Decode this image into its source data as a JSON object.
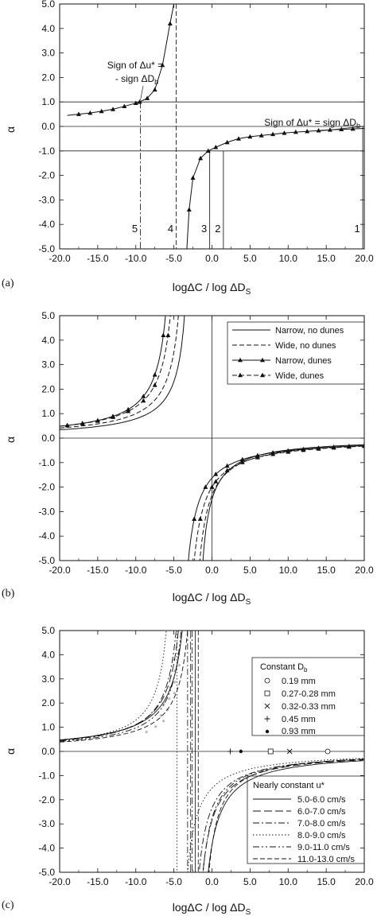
{
  "figure": {
    "panels": [
      {
        "letter": "(a)",
        "xlabel": "logΔC / log ΔD",
        "xlabel_sub": "S",
        "ylabel": "α",
        "annotations": [
          {
            "lines": [
              "Sign of Δu* =",
              "- sign ΔD"
            ],
            "sub": "b"
          },
          {
            "lines": [
              "Sign of Δu* = sign ΔD"
            ],
            "sub": "b"
          }
        ],
        "region_labels": [
          "1",
          "2",
          "3",
          "4",
          "5"
        ]
      },
      {
        "letter": "(b)",
        "xlabel": "logΔC / log ΔD",
        "xlabel_sub": "S",
        "ylabel": "α",
        "legend": [
          "Narrow, no dunes",
          "Wide, no dunes",
          "Narrow, dunes",
          "Wide, dunes"
        ]
      },
      {
        "letter": "(c)",
        "xlabel": "logΔC / log ΔD",
        "xlabel_sub": "S",
        "ylabel": "α",
        "legend_db_title": "Constant D",
        "legend_db_title_sub": "b",
        "legend_db": [
          "0.19 mm",
          "0.27-0.28 mm",
          "0.32-0.33 mm",
          "0.45 mm",
          "0.93 mm"
        ],
        "legend_u_title": "Nearly constant u*",
        "legend_u": [
          "5.0-6.0 cm/s",
          "6.0-7.0 cm/s",
          "7.0-8.0 cm/s",
          "8.0-9.0 cm/s",
          "9.0-11.0 cm/s",
          "11.0-13.0 cm/s"
        ]
      }
    ]
  },
  "chart_data": [
    {
      "type": "line",
      "panel": "(a)",
      "xlabel": "logΔC / log ΔD_S",
      "ylabel": "α",
      "xlim": [
        -20,
        20
      ],
      "ylim": [
        -5,
        5
      ],
      "x_ticks": [
        "-20.0",
        "-15.0",
        "-10.0",
        "-5.0",
        "0.0",
        "5.0",
        "10.0",
        "15.0",
        "20.0"
      ],
      "y_ticks": [
        "5.0",
        "4.0",
        "3.0",
        "2.0",
        "1.0",
        "0.0",
        "-1.0",
        "-2.0",
        "-3.0",
        "-4.0",
        "-5.0"
      ],
      "horizontal_lines": [
        1,
        0,
        -1
      ],
      "vertical_lines": [
        {
          "x": -9.4,
          "style": "dash-dot",
          "label": "5"
        },
        {
          "x": -4.7,
          "style": "dashed",
          "label": "4"
        },
        {
          "x": -0.3,
          "style": "solid",
          "label": "3"
        },
        {
          "x": 1.5,
          "style": "solid",
          "label": "2"
        },
        {
          "x": 19.8,
          "style": "solid",
          "label": "1"
        }
      ],
      "series": [
        {
          "marker": "triangle",
          "x": [
            -19,
            -17.5,
            -16,
            -14.5,
            -13,
            -11.5,
            -10,
            -9.5,
            -8.5,
            -7.5,
            -6.5,
            -5.5,
            -5
          ],
          "y": [
            0.45,
            0.5,
            0.55,
            0.62,
            0.7,
            0.82,
            0.95,
            1.0,
            1.15,
            1.5,
            2.5,
            4.2,
            5.0
          ]
        },
        {
          "marker": "triangle",
          "x": [
            -3.3,
            -3.0,
            -2.5,
            -1.5,
            -0.5,
            0.5,
            2,
            3.5,
            5,
            6.5,
            8,
            9.5,
            11,
            12.5,
            14,
            15.5,
            17,
            18.5,
            20
          ],
          "y": [
            -5.0,
            -3.4,
            -2.1,
            -1.3,
            -1.0,
            -0.85,
            -0.65,
            -0.5,
            -0.42,
            -0.37,
            -0.32,
            -0.27,
            -0.23,
            -0.2,
            -0.17,
            -0.14,
            -0.12,
            -0.1,
            -0.08
          ]
        }
      ]
    },
    {
      "type": "line",
      "panel": "(b)",
      "xlabel": "logΔC / log ΔD_S",
      "ylabel": "α",
      "xlim": [
        -20,
        20
      ],
      "ylim": [
        -5,
        5
      ],
      "x_ticks": [
        "-20.0",
        "-15.0",
        "-10.0",
        "-5.0",
        "0.0",
        "5.0",
        "10.0",
        "15.0",
        "20.0"
      ],
      "y_ticks": [
        "5.0",
        "4.0",
        "3.0",
        "2.0",
        "1.0",
        "0.0",
        "-1.0",
        "-2.0",
        "-3.0",
        "-4.0",
        "-5.0"
      ],
      "legend_position": "top-right",
      "series": [
        {
          "name": "Narrow, no dunes",
          "style": "solid",
          "x0": -2.4,
          "a": 6
        },
        {
          "name": "Wide, no dunes",
          "style": "dashed",
          "x0": -3.0,
          "a": 7
        },
        {
          "name": "Narrow, dunes",
          "style": "solid",
          "marker": "triangle",
          "x0": -4.6,
          "a": 7.5
        },
        {
          "name": "Wide, dunes",
          "style": "dashed",
          "marker": "triangle",
          "x0": -3.9,
          "a": 7.8
        }
      ]
    },
    {
      "type": "line",
      "panel": "(c)",
      "xlabel": "logΔC / log ΔD_S",
      "ylabel": "α",
      "xlim": [
        -20,
        20
      ],
      "ylim": [
        -5,
        5
      ],
      "x_ticks": [
        "-20.0",
        "-15.0",
        "-10.0",
        "-5.0",
        "0.0",
        "5.0",
        "10.0",
        "15.0",
        "20.0"
      ],
      "y_ticks": [
        "5.0",
        "4.0",
        "3.0",
        "2.0",
        "1.0",
        "0.0",
        "-1.0",
        "-2.0",
        "-3.0",
        "-4.0",
        "-5.0"
      ],
      "points_constant_Db": [
        {
          "name": "0.19 mm",
          "marker": "circle",
          "x": 15.2,
          "y": 0.0
        },
        {
          "name": "0.27-0.28 mm",
          "marker": "square",
          "x": 7.7,
          "y": 0.0
        },
        {
          "name": "0.32-0.33 mm",
          "marker": "x",
          "x": 10.2,
          "y": 0.0
        },
        {
          "name": "0.45 mm",
          "marker": "plus",
          "x": 2.4,
          "y": 0.0
        },
        {
          "name": "0.93 mm",
          "marker": "dot",
          "x": 3.8,
          "y": 0.0
        }
      ],
      "series": [
        {
          "name": "5.0-6.0 cm/s",
          "style": "solid",
          "x0": -2.2,
          "a": 8.5
        },
        {
          "name": "6.0-7.0 cm/s",
          "style": "longdash",
          "x0": -2.8,
          "a": 8.0
        },
        {
          "name": "7.0-8.0 cm/s",
          "style": "dashdot",
          "x0": -3.2,
          "a": 7.5
        },
        {
          "name": "8.0-9.0 cm/s",
          "style": "dotted",
          "x0": -4.6,
          "a": 7.0
        },
        {
          "name": "9.0-11.0 cm/s",
          "style": "dashdotdot",
          "x0": -2.6,
          "a": 7.2
        },
        {
          "name": "11.0-13.0 cm/s",
          "style": "dashed",
          "x0": -1.8,
          "a": 7.0
        }
      ]
    }
  ]
}
